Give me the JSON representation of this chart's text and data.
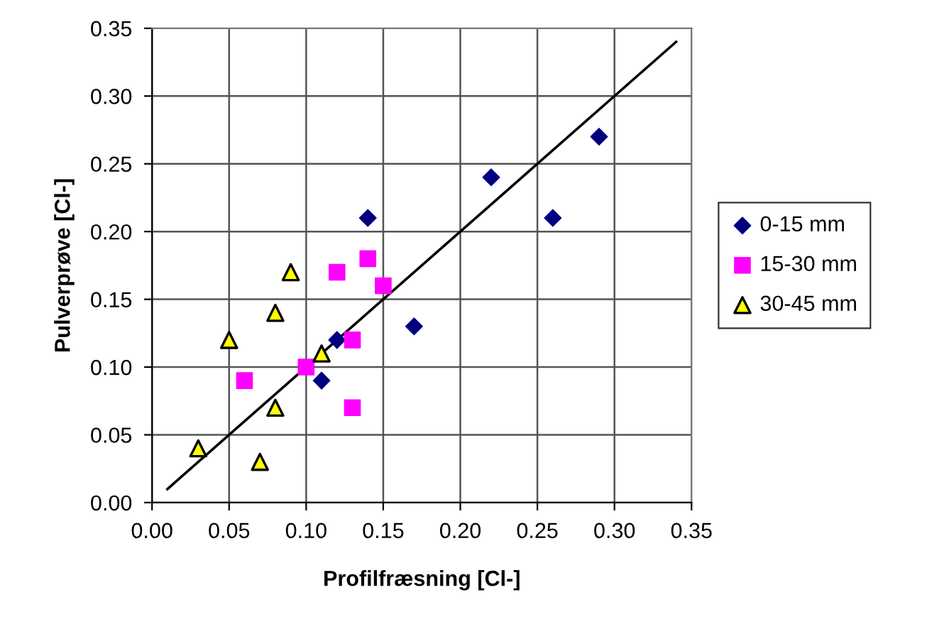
{
  "chart_data": {
    "type": "scatter",
    "xlabel": "Profilfræsning [Cl-]",
    "ylabel": "Pulverprøve [Cl-]",
    "xlim": [
      0,
      0.35
    ],
    "ylim": [
      0,
      0.35
    ],
    "xticks": [
      {
        "value": 0,
        "label": "0.00"
      },
      {
        "value": 0.05,
        "label": "0.05"
      },
      {
        "value": 0.1,
        "label": "0.10"
      },
      {
        "value": 0.15,
        "label": "0.15"
      },
      {
        "value": 0.2,
        "label": "0.20"
      },
      {
        "value": 0.25,
        "label": "0.25"
      },
      {
        "value": 0.3,
        "label": "0.30"
      },
      {
        "value": 0.35,
        "label": "0.35"
      }
    ],
    "yticks": [
      {
        "value": 0,
        "label": "0.00"
      },
      {
        "value": 0.05,
        "label": "0.05"
      },
      {
        "value": 0.1,
        "label": "0.10"
      },
      {
        "value": 0.15,
        "label": "0.15"
      },
      {
        "value": 0.2,
        "label": "0.20"
      },
      {
        "value": 0.25,
        "label": "0.25"
      },
      {
        "value": 0.3,
        "label": "0.30"
      },
      {
        "value": 0.35,
        "label": "0.35"
      }
    ],
    "grid": true,
    "legend": "right",
    "series": [
      {
        "name": "0-15 mm",
        "color": "#000080",
        "marker": "diamond",
        "x": [
          0.11,
          0.12,
          0.14,
          0.17,
          0.22,
          0.26,
          0.29
        ],
        "values": [
          0.09,
          0.12,
          0.21,
          0.13,
          0.24,
          0.21,
          0.27
        ]
      },
      {
        "name": "15-30 mm",
        "color": "#ff00ff",
        "marker": "square",
        "x": [
          0.06,
          0.1,
          0.12,
          0.13,
          0.13,
          0.14,
          0.15
        ],
        "values": [
          0.09,
          0.1,
          0.17,
          0.12,
          0.07,
          0.18,
          0.16
        ]
      },
      {
        "name": "30-45 mm",
        "color": "#ffff00",
        "marker": "triangle",
        "x": [
          0.03,
          0.05,
          0.07,
          0.08,
          0.08,
          0.09,
          0.11
        ],
        "values": [
          0.04,
          0.12,
          0.03,
          0.14,
          0.07,
          0.17,
          0.11
        ]
      },
      {
        "type": "line",
        "color": "#000000",
        "marker": "none",
        "x": [
          0.01,
          0.34
        ],
        "values": [
          0.01,
          0.34
        ]
      }
    ]
  }
}
